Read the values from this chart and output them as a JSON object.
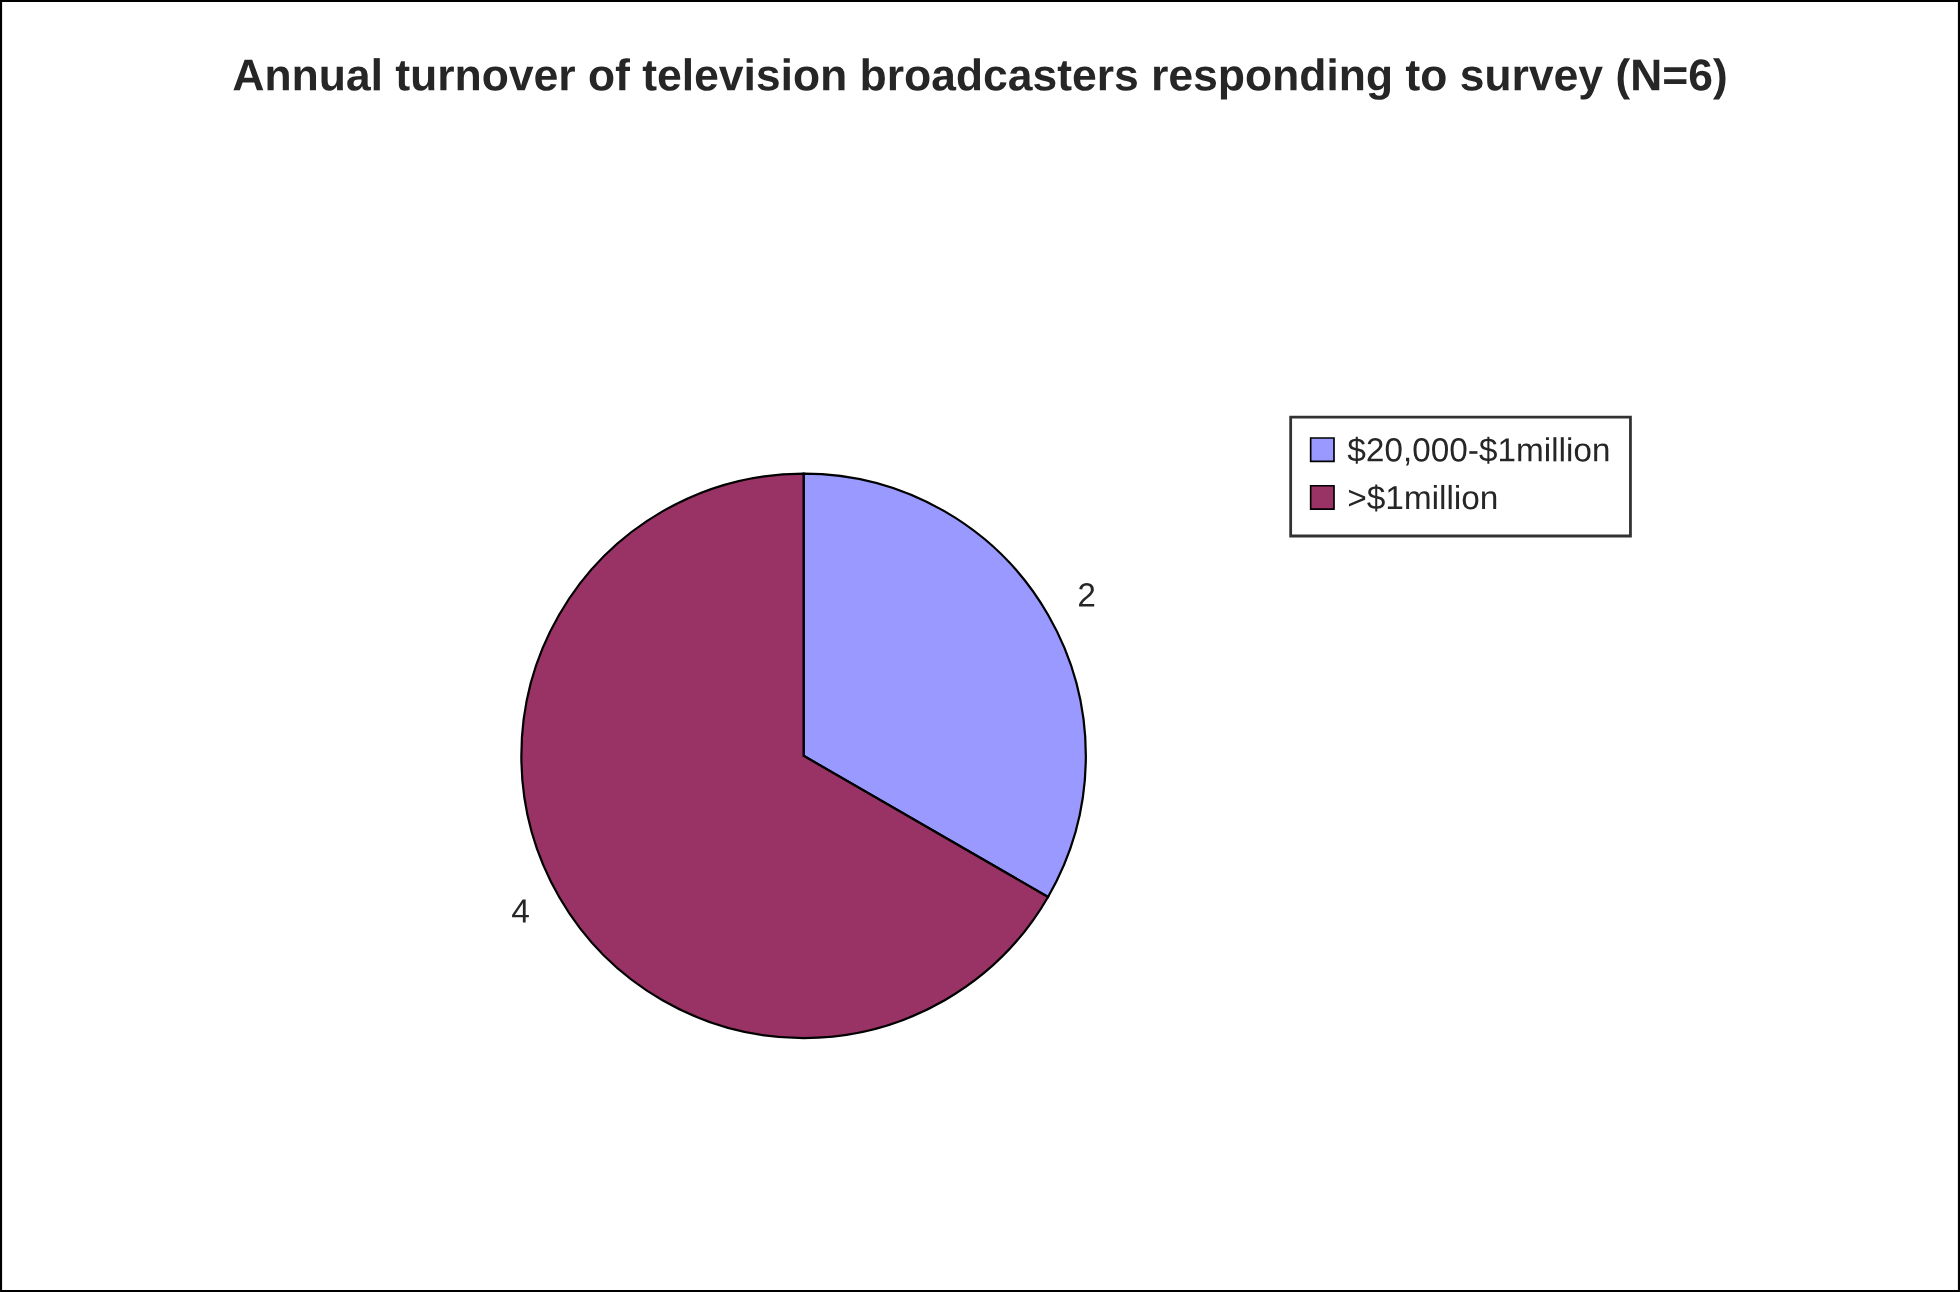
{
  "chart_data": {
    "type": "pie",
    "title": "Annual turnover of television broadcasters responding to survey (N=6)",
    "categories": [
      "$20,000-$1million",
      ">$1million"
    ],
    "values": [
      2,
      4
    ],
    "colors": [
      "#9999ff",
      "#993366"
    ],
    "data_labels": true,
    "legend": "right"
  }
}
